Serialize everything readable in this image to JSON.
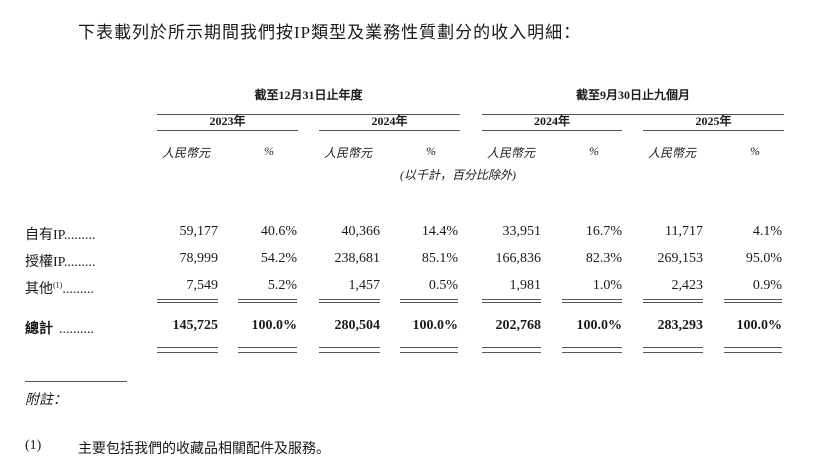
{
  "intro": "下表載列於所示期間我們按IP類型及業務性質劃分的收入明細：",
  "header": {
    "group_annual": "截至12月31日止年度",
    "group_nine_months": "截至9月30日止九個月",
    "years": [
      "2023年",
      "2024年",
      "2024年",
      "2025年"
    ],
    "currency_label": "人民幣元",
    "percent_label": "%",
    "unit_note": "(以千計，百分比除外)"
  },
  "rows": [
    {
      "label": "自有IP",
      "leader": ".........",
      "footnote": "",
      "values": [
        "59,177",
        "40.6%",
        "40,366",
        "14.4%",
        "33,951",
        "16.7%",
        "11,717",
        "4.1%"
      ]
    },
    {
      "label": "授權IP",
      "leader": ".........",
      "footnote": "",
      "values": [
        "78,999",
        "54.2%",
        "238,681",
        "85.1%",
        "166,836",
        "82.3%",
        "269,153",
        "95.0%"
      ]
    },
    {
      "label": "其他",
      "leader": ".........",
      "footnote": "(1)",
      "values": [
        "7,549",
        "5.2%",
        "1,457",
        "0.5%",
        "1,981",
        "1.0%",
        "2,423",
        "0.9%"
      ]
    }
  ],
  "total": {
    "label": "總計",
    "leader": "..........",
    "values": [
      "145,725",
      "100.0%",
      "280,504",
      "100.0%",
      "202,768",
      "100.0%",
      "283,293",
      "100.0%"
    ]
  },
  "notes_heading": "附註：",
  "notes": [
    {
      "marker": "(1)",
      "text": "主要包括我們的收藏品相關配件及服務。"
    }
  ]
}
